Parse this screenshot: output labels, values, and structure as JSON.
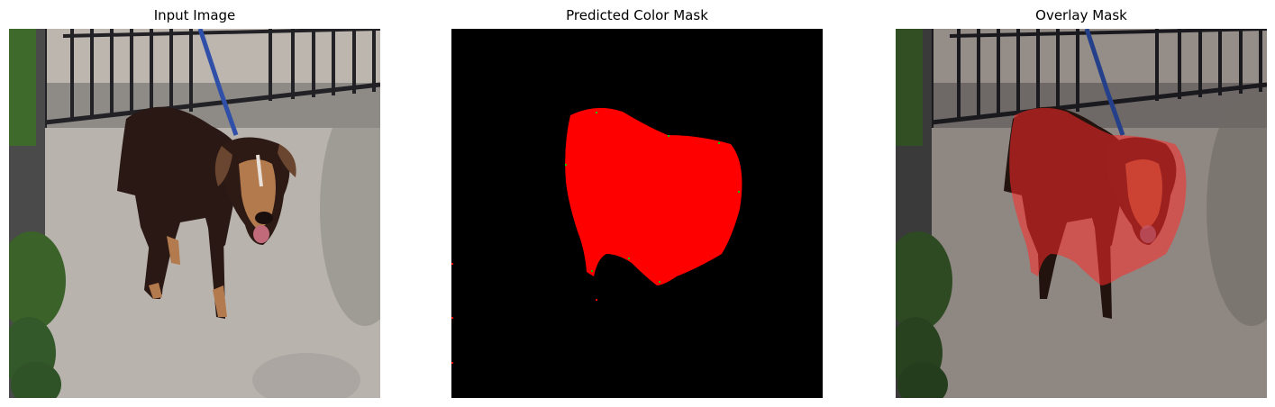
{
  "panels": [
    {
      "title": "Input Image",
      "content": "photo of a brown and black dog on a leash standing on concrete near a black iron fence"
    },
    {
      "title": "Predicted Color Mask",
      "content": "red segmentation mask of the dog on black background"
    },
    {
      "title": "Overlay Mask",
      "content": "photo with translucent red mask overlaid on the dog"
    }
  ],
  "colors": {
    "mask": "#ff0000",
    "background": "#000000",
    "ground": "#b9b4ae",
    "fence": "#2a2a2e",
    "dog_body": "#2b1a16",
    "dog_tan": "#b07a4e",
    "leash": "#2e4fa8",
    "foliage": "#3f6a2e"
  }
}
